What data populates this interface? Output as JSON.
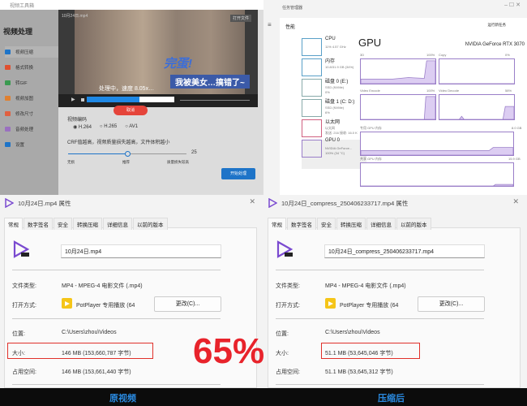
{
  "video_tool": {
    "title": "视频工具箱",
    "section": "视频处理",
    "sidebar": [
      {
        "label": "视频压缩",
        "color": "#1e74c8"
      },
      {
        "label": "格式转换",
        "color": "#e05030"
      },
      {
        "label": "转GIF",
        "color": "#3a9a50"
      },
      {
        "label": "视频加图",
        "color": "#e08030"
      },
      {
        "label": "修改尺寸",
        "color": "#e06040"
      },
      {
        "label": "音频处理",
        "color": "#9a70c0"
      },
      {
        "label": "设置",
        "color": "#1e74c8"
      }
    ],
    "video_file": "10月24日.mp4",
    "open_file": "打开文件",
    "caption1": "完蛋!",
    "caption2": "我被美女…搞错了~",
    "processing": "处理中，速度 8.05x…",
    "progress": 0.6,
    "cancel": "取消",
    "codec_label": "视频编码",
    "codecs": [
      "H.264",
      "H.265",
      "AV1"
    ],
    "codec_selected": "H.264",
    "crf_label": "CRF值越高，视频质量损失越高，文件体积越小",
    "crf_value": "25",
    "crf_marks": [
      "无损",
      "推荐",
      "质量损失较高"
    ],
    "start": "开始处理"
  },
  "task_manager": {
    "title": "任务管理器",
    "tab": "性能",
    "run_task": "运行新任务",
    "resources": [
      {
        "name": "CPU",
        "sub": "11% 4.57 GHz"
      },
      {
        "name": "内存",
        "sub": "10.8/31.9 GB (34%)"
      },
      {
        "name": "磁盘 0 (E:)",
        "sub": "SSD (NVMe)",
        "sub2": "0%"
      },
      {
        "name": "磁盘 1 (C: D:)",
        "sub": "SSD (NVMe)",
        "sub2": "6%"
      },
      {
        "name": "以太网",
        "sub": "以太网",
        "sub2": "发送: 216 接收: 16.0 K"
      },
      {
        "name": "GPU 0",
        "sub": "NVIDIA GeForce...",
        "sub2": "100% (34 °C)"
      }
    ],
    "gpu_title": "GPU",
    "gpu_model": "NVIDIA GeForce RTX 3070",
    "graphs": [
      {
        "label": "3D",
        "value": "100%"
      },
      {
        "label": "Copy",
        "value": "0%"
      },
      {
        "label": "Video Encode",
        "value": "100%"
      },
      {
        "label": "Video Decode",
        "value": "58%"
      }
    ],
    "dedicated": {
      "label": "专用 GPU 内存",
      "value": "8.0 GB"
    },
    "shared": {
      "label": "共享 GPU 内存",
      "value": "15.9 GB"
    }
  },
  "original": {
    "title": "10月24日.mp4 属性",
    "tabs": [
      "常规",
      "数字签名",
      "安全",
      "转换压缩",
      "详细信息",
      "以前的版本"
    ],
    "filename": "10月24日.mp4",
    "type_label": "文件类型:",
    "type": "MP4 - MPEG-4 电影文件 (.mp4)",
    "open_label": "打开方式:",
    "open": "PotPlayer 专用播放 (64",
    "change": "更改(C)...",
    "loc_label": "位置:",
    "loc": "C:\\Users\\zhou\\Videos",
    "size_label": "大小:",
    "size": "146 MB (153,660,787 字节)",
    "disk_label": "占用空间:",
    "disk": "146 MB (153,661,440 字节)",
    "caption": "原视频"
  },
  "compressed": {
    "title": "10月24日_compress_250406233717.mp4 属性",
    "tabs": [
      "常规",
      "数字签名",
      "安全",
      "转换压缩",
      "详细信息",
      "以前的版本"
    ],
    "filename": "10月24日_compress_250406233717.mp4",
    "type_label": "文件类型:",
    "type": "MP4 - MPEG-4 电影文件 (.mp4)",
    "open_label": "打开方式:",
    "open": "PotPlayer 专用播放 (64",
    "change": "更改(C)...",
    "loc_label": "位置:",
    "loc": "C:\\Users\\zhou\\Videos",
    "size_label": "大小:",
    "size": "51.1 MB (53,645,046 字节)",
    "disk_label": "占用空间:",
    "disk": "51.1 MB (53,645,312 字节)",
    "caption": "压缩后"
  },
  "ratio": "65%"
}
